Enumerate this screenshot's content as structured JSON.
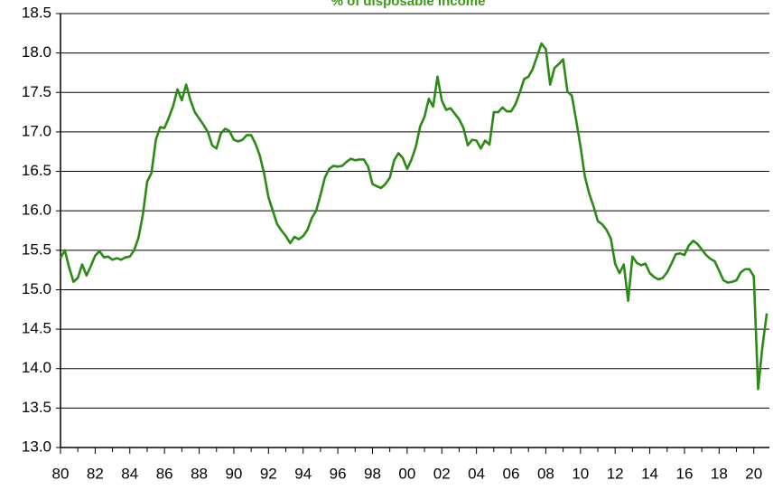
{
  "chart_data": {
    "type": "line",
    "title": "% of disposable income",
    "x": [
      1980,
      1980.25,
      1980.5,
      1980.75,
      1981,
      1981.25,
      1981.5,
      1981.75,
      1982,
      1982.25,
      1982.5,
      1982.75,
      1983,
      1983.25,
      1983.5,
      1983.75,
      1984,
      1984.25,
      1984.5,
      1984.75,
      1985,
      1985.25,
      1985.5,
      1985.75,
      1986,
      1986.25,
      1986.5,
      1986.75,
      1987,
      1987.25,
      1987.5,
      1987.75,
      1988,
      1988.25,
      1988.5,
      1988.75,
      1989,
      1989.25,
      1989.5,
      1989.75,
      1990,
      1990.25,
      1990.5,
      1990.75,
      1991,
      1991.25,
      1991.5,
      1991.75,
      1992,
      1992.25,
      1992.5,
      1992.75,
      1993,
      1993.25,
      1993.5,
      1993.75,
      1994,
      1994.25,
      1994.5,
      1994.75,
      1995,
      1995.25,
      1995.5,
      1995.75,
      1996,
      1996.25,
      1996.5,
      1996.75,
      1997,
      1997.25,
      1997.5,
      1997.75,
      1998,
      1998.25,
      1998.5,
      1998.75,
      1999,
      1999.25,
      1999.5,
      1999.75,
      2000,
      2000.25,
      2000.5,
      2000.75,
      2001,
      2001.25,
      2001.5,
      2001.75,
      2002,
      2002.25,
      2002.5,
      2002.75,
      2003,
      2003.25,
      2003.5,
      2003.75,
      2004,
      2004.25,
      2004.5,
      2004.75,
      2005,
      2005.25,
      2005.5,
      2005.75,
      2006,
      2006.25,
      2006.5,
      2006.75,
      2007,
      2007.25,
      2007.5,
      2007.75,
      2008,
      2008.25,
      2008.5,
      2008.75,
      2009,
      2009.25,
      2009.5,
      2009.75,
      2010,
      2010.25,
      2010.5,
      2010.75,
      2011,
      2011.25,
      2011.5,
      2011.75,
      2012,
      2012.25,
      2012.5,
      2012.75,
      2013,
      2013.25,
      2013.5,
      2013.75,
      2014,
      2014.25,
      2014.5,
      2014.75,
      2015,
      2015.25,
      2015.5,
      2015.75,
      2016,
      2016.25,
      2016.5,
      2016.75,
      2017,
      2017.25,
      2017.5,
      2017.75,
      2018,
      2018.25,
      2018.5,
      2018.75,
      2019,
      2019.25,
      2019.5,
      2019.75,
      2020,
      2020.25,
      2020.5,
      2020.75
    ],
    "series": [
      {
        "color": "#2a8a14",
        "values": [
          15.4,
          15.5,
          15.28,
          15.1,
          15.15,
          15.32,
          15.18,
          15.3,
          15.43,
          15.49,
          15.41,
          15.42,
          15.38,
          15.4,
          15.38,
          15.41,
          15.42,
          15.5,
          15.66,
          15.95,
          16.37,
          16.48,
          16.9,
          17.06,
          17.05,
          17.18,
          17.33,
          17.54,
          17.4,
          17.6,
          17.4,
          17.25,
          17.17,
          17.09,
          17.0,
          16.83,
          16.79,
          16.98,
          17.04,
          17.01,
          16.9,
          16.88,
          16.9,
          16.96,
          16.96,
          16.85,
          16.7,
          16.47,
          16.17,
          16.0,
          15.83,
          15.75,
          15.68,
          15.59,
          15.67,
          15.64,
          15.68,
          15.76,
          15.91,
          16.0,
          16.2,
          16.42,
          16.53,
          16.57,
          16.56,
          16.57,
          16.62,
          16.66,
          16.64,
          16.65,
          16.65,
          16.56,
          16.34,
          16.31,
          16.29,
          16.34,
          16.42,
          16.64,
          16.73,
          16.67,
          16.53,
          16.65,
          16.81,
          17.07,
          17.19,
          17.42,
          17.32,
          17.7,
          17.4,
          17.28,
          17.3,
          17.23,
          17.16,
          17.05,
          16.83,
          16.9,
          16.89,
          16.79,
          16.89,
          16.84,
          17.25,
          17.25,
          17.31,
          17.26,
          17.26,
          17.35,
          17.5,
          17.67,
          17.7,
          17.8,
          17.96,
          18.12,
          18.05,
          17.6,
          17.81,
          17.86,
          17.92,
          17.51,
          17.46,
          17.15,
          16.82,
          16.44,
          16.22,
          16.06,
          15.87,
          15.83,
          15.76,
          15.65,
          15.33,
          15.21,
          15.32,
          14.86,
          15.42,
          15.34,
          15.31,
          15.33,
          15.21,
          15.16,
          15.13,
          15.15,
          15.22,
          15.33,
          15.45,
          15.46,
          15.44,
          15.56,
          15.62,
          15.58,
          15.51,
          15.44,
          15.39,
          15.36,
          15.24,
          15.12,
          15.09,
          15.1,
          15.12,
          15.22,
          15.26,
          15.26,
          15.17,
          13.74,
          14.28,
          14.7
        ]
      }
    ],
    "xlim": [
      1980,
      2020.9
    ],
    "xticks": [
      {
        "value": 1980,
        "label": "80"
      },
      {
        "value": 1982,
        "label": "82"
      },
      {
        "value": 1984,
        "label": "84"
      },
      {
        "value": 1986,
        "label": "86"
      },
      {
        "value": 1988,
        "label": "88"
      },
      {
        "value": 1990,
        "label": "90"
      },
      {
        "value": 1992,
        "label": "92"
      },
      {
        "value": 1994,
        "label": "94"
      },
      {
        "value": 1996,
        "label": "96"
      },
      {
        "value": 1998,
        "label": "98"
      },
      {
        "value": 2000,
        "label": "00"
      },
      {
        "value": 2002,
        "label": "02"
      },
      {
        "value": 2004,
        "label": "04"
      },
      {
        "value": 2006,
        "label": "06"
      },
      {
        "value": 2008,
        "label": "08"
      },
      {
        "value": 2010,
        "label": "10"
      },
      {
        "value": 2012,
        "label": "12"
      },
      {
        "value": 2014,
        "label": "14"
      },
      {
        "value": 2016,
        "label": "16"
      },
      {
        "value": 2018,
        "label": "18"
      },
      {
        "value": 2020,
        "label": "20"
      }
    ],
    "xminorticks": [
      1981,
      1983,
      1985,
      1987,
      1989,
      1991,
      1993,
      1995,
      1997,
      1999,
      2001,
      2003,
      2005,
      2007,
      2009,
      2011,
      2013,
      2015,
      2017,
      2019
    ],
    "ylim": [
      13,
      18.5
    ],
    "yticks": [
      {
        "value": 13,
        "label": "13.0"
      },
      {
        "value": 13.5,
        "label": "13.5"
      },
      {
        "value": 14,
        "label": "14.0"
      },
      {
        "value": 14.5,
        "label": "14.5"
      },
      {
        "value": 15,
        "label": "15.0"
      },
      {
        "value": 15.5,
        "label": "15.5"
      },
      {
        "value": 16,
        "label": "16.0"
      },
      {
        "value": 16.5,
        "label": "16.5"
      },
      {
        "value": 17,
        "label": "17.0"
      },
      {
        "value": 17.5,
        "label": "17.5"
      },
      {
        "value": 18,
        "label": "18.0"
      },
      {
        "value": 18.5,
        "label": "18.5"
      }
    ],
    "grid": true
  }
}
